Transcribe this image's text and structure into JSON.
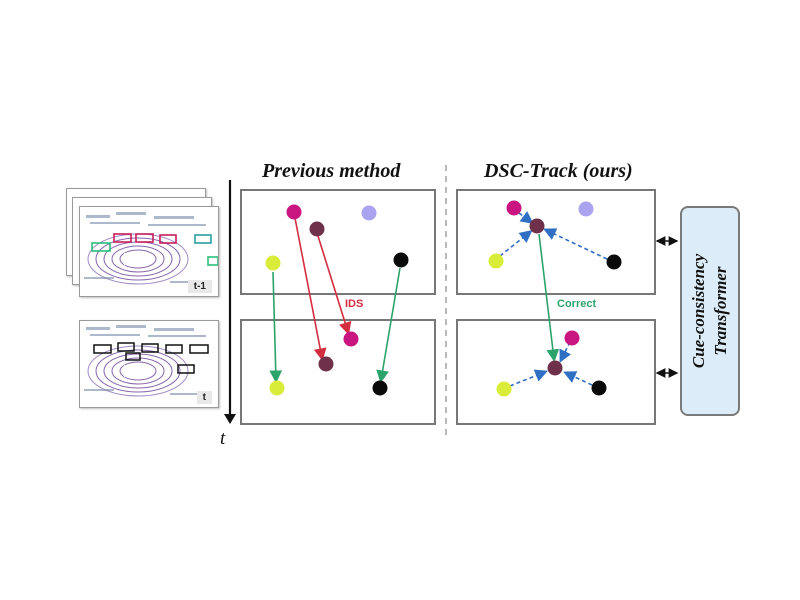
{
  "figure": {
    "headings": {
      "previous": "Previous method",
      "ours": "DSC-Track (ours)"
    },
    "time_axis_label": "t",
    "frame_labels": {
      "previous_frame": "t-1",
      "current_frame": "t"
    },
    "arrow_labels": {
      "ids": "IDS",
      "correct": "Correct"
    },
    "transformer": {
      "line1": "Cue-consistency",
      "line2": "Transformer"
    },
    "colors": {
      "magenta": "#c8157f",
      "plum": "#6e3149",
      "lavender": "#a9a3f0",
      "lime": "#d9ec3a",
      "black": "#0a0a0a",
      "ids_red": "#d42d3f",
      "correct_green": "#2ca36b",
      "dashed_blue": "#2f6fc4",
      "panel_border": "#777777",
      "transformer_fill": "#dcecf8"
    }
  }
}
